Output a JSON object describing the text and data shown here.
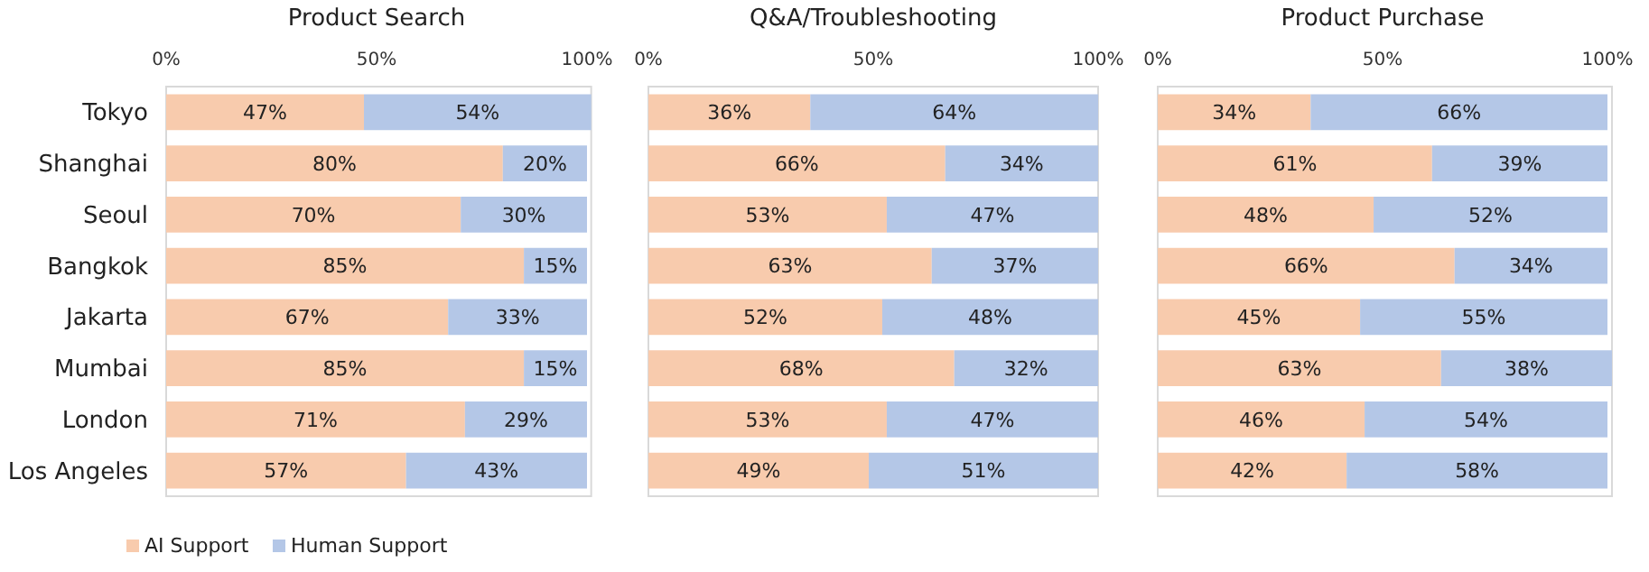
{
  "chart_data": [
    {
      "type": "bar",
      "title": "Product Search",
      "orientation": "horizontal",
      "stacked": true,
      "legend": "bottom",
      "categories": [
        "Tokyo",
        "Shanghai",
        "Seoul",
        "Bangkok",
        "Jakarta",
        "Mumbai",
        "London",
        "Los Angeles"
      ],
      "xlim": [
        0,
        101
      ],
      "xticks": [
        {
          "value": 0,
          "label": "0%"
        },
        {
          "value": 50,
          "label": "50%"
        },
        {
          "value": 100,
          "label": "100%"
        }
      ],
      "series": [
        {
          "name": "AI Support",
          "color": "#f8cbad",
          "values": [
            47,
            80,
            70,
            85,
            67,
            85,
            71,
            57
          ],
          "value_labels": [
            "47%",
            "80%",
            "70%",
            "85%",
            "67%",
            "85%",
            "71%",
            "57%"
          ]
        },
        {
          "name": "Human Support",
          "color": "#b4c7e7",
          "values": [
            54,
            20,
            30,
            15,
            33,
            15,
            29,
            43
          ],
          "value_labels": [
            "54%",
            "20%",
            "30%",
            "15%",
            "33%",
            "15%",
            "29%",
            "43%"
          ]
        }
      ]
    },
    {
      "type": "bar",
      "title": "Q&A/Troubleshooting",
      "orientation": "horizontal",
      "stacked": true,
      "tick_labels": "x",
      "categories": [
        null,
        null,
        null,
        null,
        null,
        null,
        null,
        null
      ],
      "xlim": [
        0,
        100
      ],
      "xticks": [
        {
          "value": 0,
          "label": "0%"
        },
        {
          "value": 50,
          "label": "50%"
        },
        {
          "value": 100,
          "label": "100%"
        }
      ],
      "series": [
        {
          "color": "#f8cbad",
          "values": [
            36,
            66,
            53,
            63,
            52,
            68,
            53,
            49
          ],
          "value_labels": [
            "36%",
            "66%",
            "53%",
            "63%",
            "52%",
            "68%",
            "53%",
            "49%"
          ]
        },
        {
          "color": "#b4c7e7",
          "values": [
            64,
            34,
            47,
            37,
            48,
            32,
            47,
            51
          ],
          "value_labels": [
            "64%",
            "34%",
            "47%",
            "37%",
            "48%",
            "32%",
            "47%",
            "51%"
          ]
        }
      ]
    },
    {
      "type": "bar",
      "title": "Product Purchase",
      "orientation": "horizontal",
      "stacked": true,
      "tick_labels": "x",
      "categories": [
        null,
        null,
        null,
        null,
        null,
        null,
        null,
        null
      ],
      "xlim": [
        0,
        101
      ],
      "xticks": [
        {
          "value": 0,
          "label": "0%"
        },
        {
          "value": 50,
          "label": "50%"
        },
        {
          "value": 100,
          "label": "100%"
        }
      ],
      "series": [
        {
          "color": "#f8cbad",
          "values": [
            34,
            61,
            48,
            66,
            45,
            63,
            46,
            42
          ],
          "value_labels": [
            "34%",
            "61%",
            "48%",
            "66%",
            "45%",
            "63%",
            "46%",
            "42%"
          ]
        },
        {
          "color": "#b4c7e7",
          "values": [
            66,
            39,
            52,
            34,
            55,
            38,
            54,
            58
          ],
          "value_labels": [
            "66%",
            "39%",
            "52%",
            "34%",
            "55%",
            "38%",
            "54%",
            "58%"
          ]
        }
      ]
    }
  ]
}
